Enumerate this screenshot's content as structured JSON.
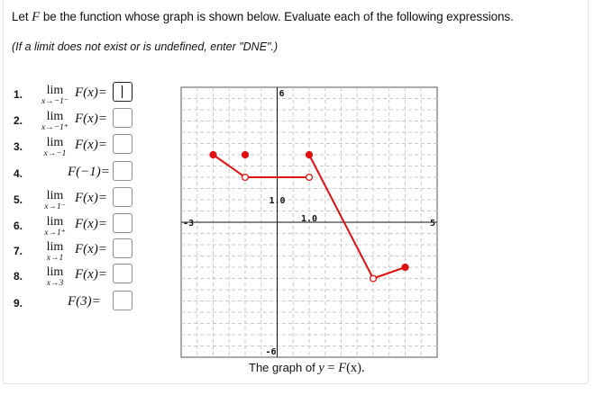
{
  "prompt": {
    "part1": "Let ",
    "fname": "F",
    "part2": " be the function whose graph is shown below. Evaluate each of the following expressions."
  },
  "note": "(If a limit does not exist or is undefined, enter \"DNE\".)",
  "questions": [
    {
      "num": "1.",
      "kind": "lim",
      "sub": "x→−1⁻",
      "expr": "F(x)=",
      "value": ""
    },
    {
      "num": "2.",
      "kind": "lim",
      "sub": "x→−1⁺",
      "expr": "F(x)=",
      "value": ""
    },
    {
      "num": "3.",
      "kind": "lim",
      "sub": "x→−1",
      "expr": "F(x)=",
      "value": ""
    },
    {
      "num": "4.",
      "kind": "eval",
      "sub": "",
      "expr": "F(−1)=",
      "value": ""
    },
    {
      "num": "5.",
      "kind": "lim",
      "sub": "x→1⁻",
      "expr": "F(x)=",
      "value": ""
    },
    {
      "num": "6.",
      "kind": "lim",
      "sub": "x→1⁺",
      "expr": "F(x)=",
      "value": ""
    },
    {
      "num": "7.",
      "kind": "lim",
      "sub": "x→1",
      "expr": "F(x)=",
      "value": ""
    },
    {
      "num": "8.",
      "kind": "lim",
      "sub": "x→3",
      "expr": "F(x)=",
      "value": ""
    },
    {
      "num": "9.",
      "kind": "eval",
      "sub": "",
      "expr": "F(3)=",
      "value": ""
    }
  ],
  "lim_word": "lim",
  "graph": {
    "xmin": -3,
    "xmax": 5,
    "ymin": -6,
    "ymax": 6,
    "label_xmin": "-3",
    "label_xmax": "5",
    "label_ymin": "-6",
    "label_ymax": "6",
    "tick_x": "1.0",
    "tick_y": "1.0",
    "line_color": "#e01010",
    "segments": [
      {
        "points": [
          [
            -2,
            3
          ],
          [
            -1,
            2
          ],
          [
            1,
            2
          ]
        ]
      },
      {
        "points": [
          [
            1,
            3
          ],
          [
            3,
            -2.5
          ],
          [
            4,
            -2
          ]
        ]
      }
    ],
    "closed_points": [
      [
        -2,
        3
      ],
      [
        -1,
        3
      ],
      [
        1,
        3
      ],
      [
        4,
        -2
      ]
    ],
    "open_points": [
      [
        -1,
        2
      ],
      [
        1,
        2
      ],
      [
        3,
        -2.5
      ]
    ]
  },
  "caption": {
    "text": "The graph of ",
    "var": "y",
    "eq": " = ",
    "fn": "F",
    "arg": "(x)."
  }
}
